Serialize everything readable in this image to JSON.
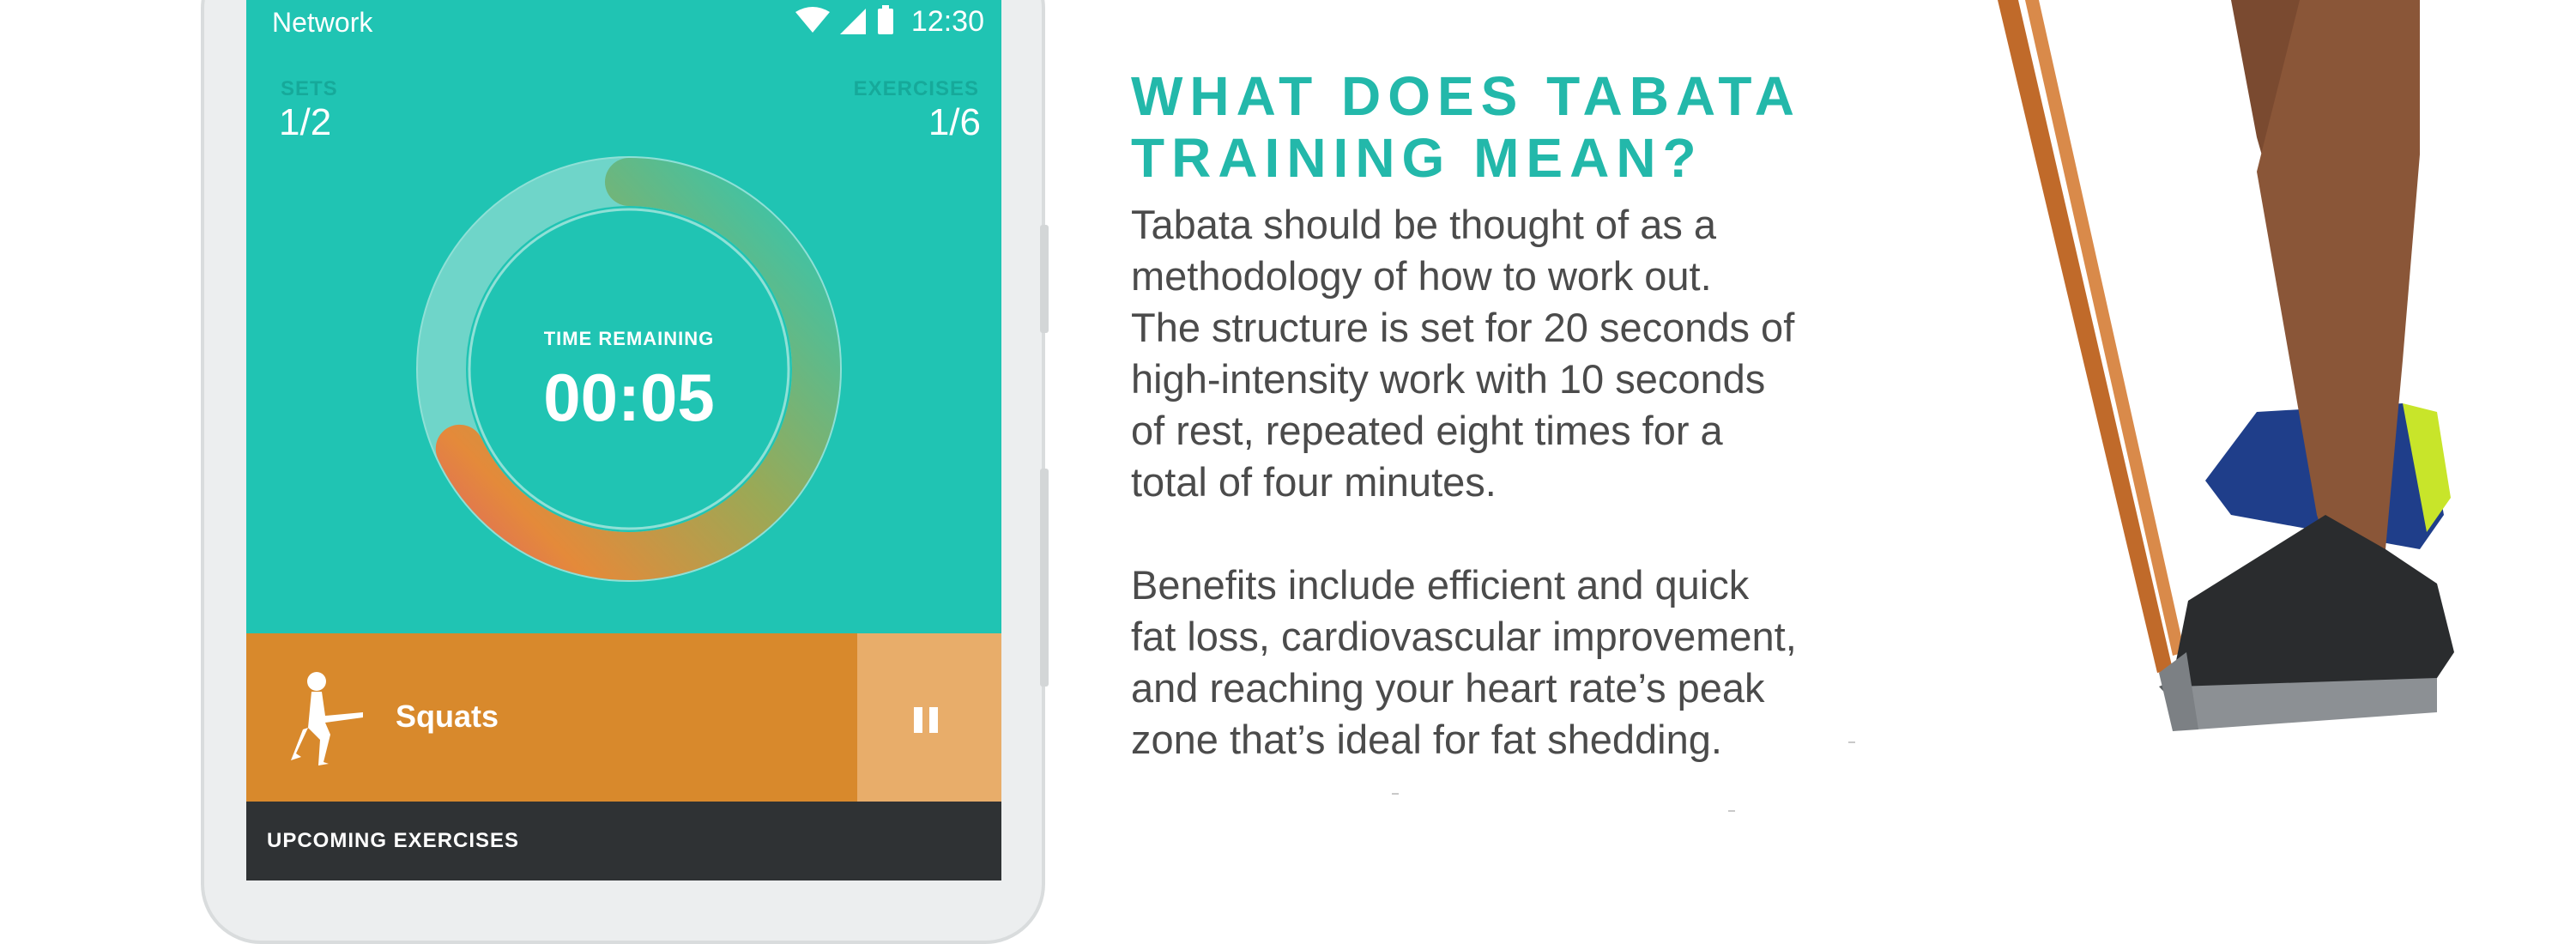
{
  "status_bar": {
    "network": "Network",
    "time": "12:30"
  },
  "stats": {
    "sets_label": "SETS",
    "sets_value": "1/2",
    "exercises_label": "EXERCISES",
    "exercises_value": "1/6"
  },
  "timer": {
    "label": "TIME REMAINING",
    "value": "00:05",
    "progress": 0.68
  },
  "current_exercise": {
    "name": "Squats",
    "icon": "squat-figure-icon"
  },
  "pause_button": {
    "icon": "pause-icon"
  },
  "upcoming": {
    "label": "UPCOMING EXERCISES"
  },
  "article": {
    "heading_line1": "WHAT DOES TABATA",
    "heading_line2": "TRAINING MEAN?",
    "paragraph1": [
      "Tabata should be thought of as a",
      "methodology of how to work out.",
      "The structure is set for 20 seconds of",
      "high-intensity work with 10 seconds",
      "of rest, repeated eight times for a",
      "total of four minutes."
    ],
    "paragraph2": [
      "Benefits include efficient and quick",
      "fat loss, cardiovascular improvement,",
      "and reaching your heart rate’s peak",
      "zone that’s ideal for fat shedding."
    ]
  },
  "colors": {
    "screen_bg": "#20c4b3",
    "heading": "#23b8aa",
    "exercise_bar": "#d8892c",
    "pause_bg": "#e8ad6a",
    "upcoming_bg": "#2f3234"
  },
  "photo": {
    "icon": "legs-with-resistance-band-photo"
  }
}
